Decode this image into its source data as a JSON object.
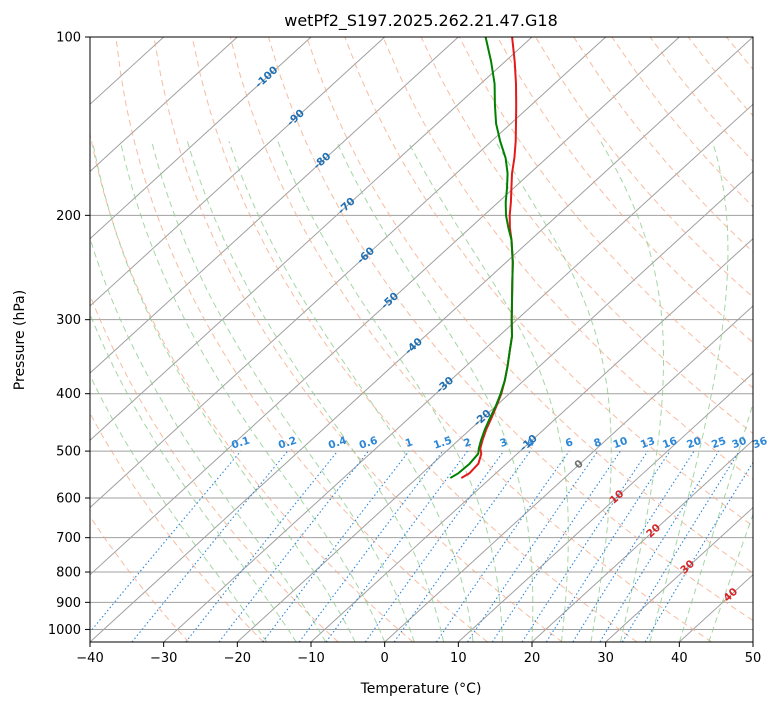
{
  "chart_data": {
    "type": "skew-t",
    "title": "wetPf2_S197.2025.262.21.47.G18",
    "xlabel": "Temperature (°C)",
    "ylabel": "Pressure (hPa)",
    "xlim": [
      -40,
      50
    ],
    "ylim": [
      1050,
      100
    ],
    "x_ticks": [
      -40,
      -30,
      -20,
      -10,
      0,
      10,
      20,
      30,
      40,
      50
    ],
    "x_tick_labels": [
      "−40",
      "−30",
      "−20",
      "−10",
      "0",
      "10",
      "20",
      "30",
      "40",
      "50"
    ],
    "y_ticks": [
      1000,
      900,
      800,
      700,
      600,
      500,
      400,
      300,
      200,
      100
    ],
    "y_tick_labels": [
      "1000",
      "900",
      "800",
      "700",
      "600",
      "500",
      "400",
      "300",
      "200",
      "100"
    ],
    "colors": {
      "temperature": "#e31a1c",
      "dewpoint": "#008000",
      "isotherm": "#a0a0a0",
      "dry_adiabat": "#f4a582",
      "moist_adiabat": "#8fcc8f",
      "mixing_ratio": "#2c87d8",
      "isotherm_label_neg": "#1f6fb2",
      "isotherm_label_zero": "#707070",
      "isotherm_label_pos": "#d62728",
      "mixing_label": "#2c87d8"
    },
    "isotherm_labels": [
      {
        "text": "-100",
        "value": -100,
        "pressure": 117
      },
      {
        "text": "-90",
        "value": -90,
        "pressure": 137
      },
      {
        "text": "-80",
        "value": -80,
        "pressure": 162
      },
      {
        "text": "-70",
        "value": -70,
        "pressure": 193
      },
      {
        "text": "-60",
        "value": -60,
        "pressure": 234
      },
      {
        "text": "-50",
        "value": -50,
        "pressure": 279
      },
      {
        "text": "-40",
        "value": -40,
        "pressure": 333
      },
      {
        "text": "-30",
        "value": -30,
        "pressure": 387
      },
      {
        "text": "-20",
        "value": -20,
        "pressure": 440
      },
      {
        "text": "-10",
        "value": -10,
        "pressure": 485
      },
      {
        "text": "0",
        "value": 0,
        "pressure": 527
      },
      {
        "text": "10",
        "value": 10,
        "pressure": 598
      },
      {
        "text": "20",
        "value": 20,
        "pressure": 682
      },
      {
        "text": "30",
        "value": 30,
        "pressure": 785
      },
      {
        "text": "40",
        "value": 40,
        "pressure": 875
      }
    ],
    "mixing_ratio_lines": [
      0.1,
      0.2,
      0.4,
      0.6,
      1,
      1.5,
      2,
      3,
      4,
      6,
      8,
      10,
      13,
      16,
      20,
      25,
      30,
      36
    ],
    "mixing_ratio_labels": [
      "0.1",
      "0.2",
      "0.4",
      "0.6",
      "1",
      "1.5",
      "2",
      "3",
      "4",
      "6",
      "8",
      "10",
      "13",
      "16",
      "20",
      "25",
      "30",
      "36"
    ],
    "mixing_ratio_label_pressure": 500,
    "series": [
      {
        "name": "Temperature",
        "pressure": [
          555,
          545,
          525,
          505,
          495,
          480,
          460,
          440,
          420,
          400,
          380,
          360,
          340,
          320,
          300,
          280,
          260,
          240,
          220,
          210,
          200,
          190,
          180,
          170,
          160,
          150,
          140,
          130,
          120,
          110,
          100
        ],
        "temperature": [
          -14.0,
          -13.6,
          -13.8,
          -14.9,
          -15.8,
          -16.7,
          -17.8,
          -18.8,
          -19.9,
          -21.1,
          -22.6,
          -24.3,
          -26.2,
          -28.2,
          -30.7,
          -33.3,
          -36.1,
          -39.1,
          -42.6,
          -44.6,
          -46.5,
          -48.3,
          -50.3,
          -52.4,
          -54.4,
          -56.7,
          -59.3,
          -62.1,
          -65.2,
          -68.7,
          -72.7
        ]
      },
      {
        "name": "Dewpoint",
        "pressure": [
          555,
          545,
          525,
          505,
          495,
          480,
          460,
          440,
          420,
          400,
          380,
          360,
          340,
          320,
          300,
          280,
          260,
          240,
          220,
          210,
          200,
          190,
          180,
          170,
          160,
          150,
          140,
          130,
          120,
          110,
          100
        ],
        "temperature": [
          -15.5,
          -15.1,
          -15.0,
          -15.3,
          -16.0,
          -16.9,
          -18.0,
          -19.0,
          -20.0,
          -21.2,
          -22.6,
          -24.3,
          -26.2,
          -28.2,
          -30.7,
          -33.3,
          -36.1,
          -39.1,
          -42.6,
          -44.8,
          -47.0,
          -49.0,
          -50.9,
          -53.0,
          -55.6,
          -58.8,
          -62.0,
          -65.0,
          -68.1,
          -71.9,
          -76.3
        ]
      }
    ]
  }
}
